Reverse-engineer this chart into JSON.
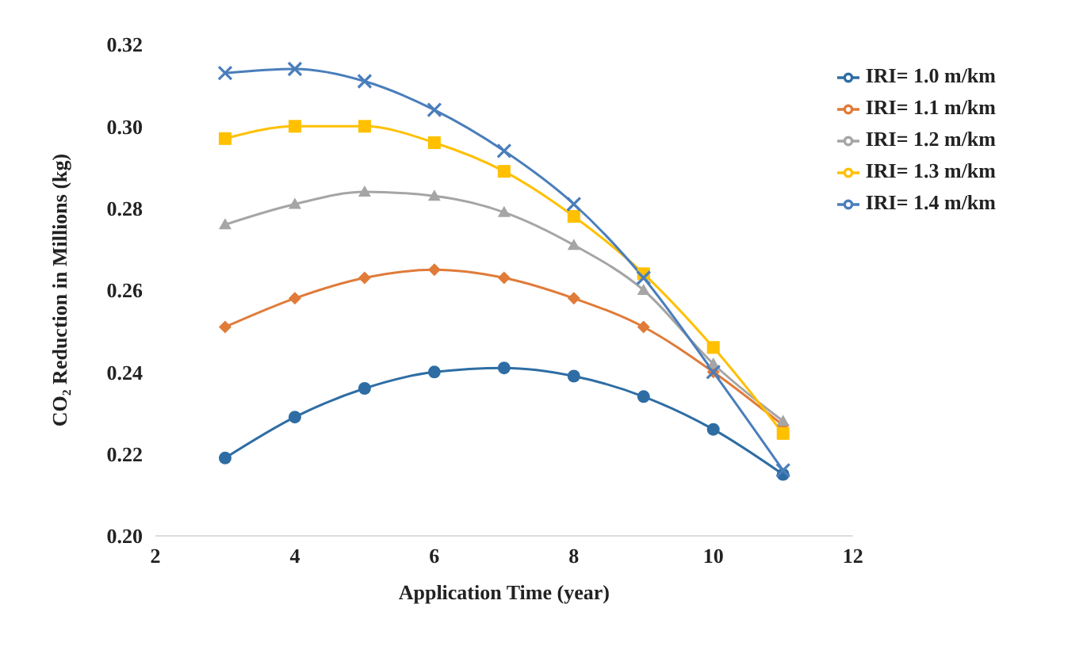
{
  "chart_data": {
    "type": "line",
    "xlabel": "Application Time (year)",
    "ylabel": "CO₂ Reduction in Millions (kg)",
    "x": [
      3,
      4,
      5,
      6,
      7,
      8,
      9,
      10,
      11
    ],
    "xlim": [
      2,
      12
    ],
    "xticks": [
      2,
      4,
      6,
      8,
      10,
      12
    ],
    "ylim": [
      0.2,
      0.32
    ],
    "yticks": [
      {
        "value": 0.2,
        "label": "0.20"
      },
      {
        "value": 0.22,
        "label": "0.22"
      },
      {
        "value": 0.24,
        "label": "0.24"
      },
      {
        "value": 0.26,
        "label": "0.26"
      },
      {
        "value": 0.28,
        "label": "0.28"
      },
      {
        "value": 0.3,
        "label": "0.30"
      },
      {
        "value": 0.32,
        "label": "0.32"
      }
    ],
    "grid": false,
    "legend": "top right",
    "series": [
      {
        "name": "IRI= 1.0 m/km",
        "color": "#2e6da4",
        "marker": "circle",
        "values": [
          0.219,
          0.229,
          0.236,
          0.24,
          0.241,
          0.239,
          0.234,
          0.226,
          0.215
        ]
      },
      {
        "name": "IRI= 1.1 m/km",
        "color": "#e07b39",
        "marker": "diamond",
        "values": [
          0.251,
          0.258,
          0.263,
          0.265,
          0.263,
          0.258,
          0.251,
          0.24,
          0.227
        ]
      },
      {
        "name": "IRI= 1.2 m/km",
        "color": "#a5a5a5",
        "marker": "triangle",
        "values": [
          0.276,
          0.281,
          0.284,
          0.283,
          0.279,
          0.271,
          0.26,
          0.242,
          0.228
        ]
      },
      {
        "name": "IRI= 1.3 m/km",
        "color": "#ffc000",
        "marker": "square",
        "values": [
          0.297,
          0.3,
          0.3,
          0.296,
          0.289,
          0.278,
          0.264,
          0.246,
          0.225
        ]
      },
      {
        "name": "IRI= 1.4 m/km",
        "color": "#4a7ebb",
        "marker": "cross",
        "values": [
          0.313,
          0.314,
          0.311,
          0.304,
          0.294,
          0.281,
          0.263,
          0.24,
          0.216
        ]
      }
    ]
  }
}
